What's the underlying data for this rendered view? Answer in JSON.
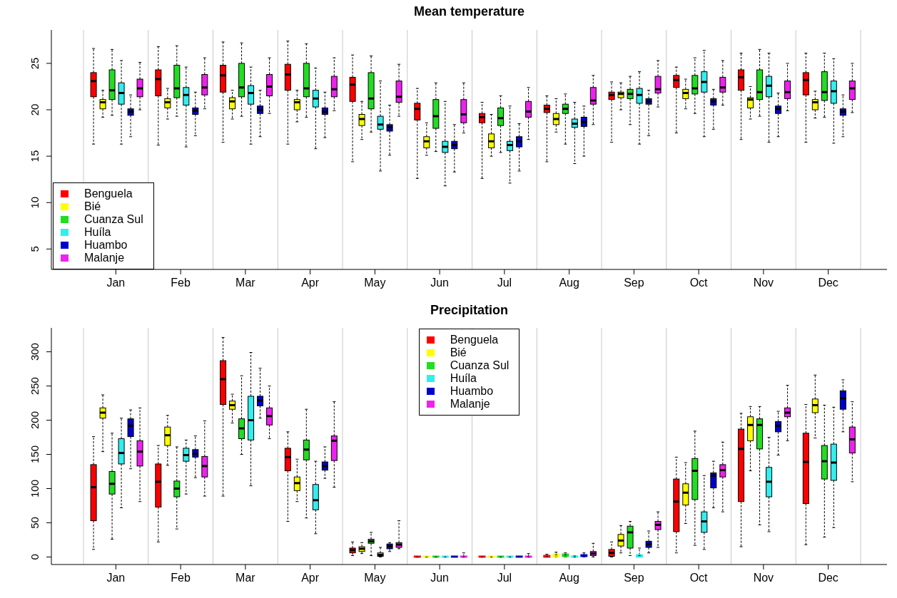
{
  "chart_data": [
    {
      "type": "box",
      "title": "Mean temperature",
      "categories": [
        "Jan",
        "Feb",
        "Mar",
        "Apr",
        "May",
        "Jun",
        "Jul",
        "Aug",
        "Sep",
        "Oct",
        "Nov",
        "Dec"
      ],
      "ylim": [
        2.8,
        28.6
      ],
      "yticks": [
        5,
        10,
        15,
        20,
        25
      ],
      "grid": "x",
      "legend": "bottom left",
      "series": [
        {
          "name": "Benguela",
          "color": "#ff0000",
          "boxes": [
            {
              "low": 16.3,
              "q1": 21.4,
              "median": 23.1,
              "q3": 24.0,
              "high": 26.6
            },
            {
              "low": 16.2,
              "q1": 21.5,
              "median": 23.3,
              "q3": 24.3,
              "high": 26.8
            },
            {
              "low": 16.5,
              "q1": 21.9,
              "median": 23.7,
              "q3": 24.8,
              "high": 27.3
            },
            {
              "low": 16.3,
              "q1": 22.1,
              "median": 23.8,
              "q3": 24.9,
              "high": 27.4
            },
            {
              "low": 14.4,
              "q1": 20.9,
              "median": 22.7,
              "q3": 23.5,
              "high": 25.9
            },
            {
              "low": 12.6,
              "q1": 18.9,
              "median": 20.1,
              "q3": 20.7,
              "high": 22.3
            },
            {
              "low": 12.6,
              "q1": 18.6,
              "median": 19.2,
              "q3": 19.6,
              "high": 20.8
            },
            {
              "low": 14.4,
              "q1": 19.7,
              "median": 20.1,
              "q3": 20.5,
              "high": 21.5
            },
            {
              "low": 16.5,
              "q1": 21.1,
              "median": 21.6,
              "q3": 21.9,
              "high": 23.0
            },
            {
              "low": 17.5,
              "q1": 22.4,
              "median": 23.2,
              "q3": 23.7,
              "high": 24.6
            },
            {
              "low": 16.8,
              "q1": 22.1,
              "median": 23.5,
              "q3": 24.3,
              "high": 26.1
            },
            {
              "low": 16.5,
              "q1": 21.6,
              "median": 23.2,
              "q3": 24.0,
              "high": 26.1
            }
          ]
        },
        {
          "name": "Bié",
          "color": "#ffff00",
          "boxes": [
            {
              "low": 19.2,
              "q1": 20.1,
              "median": 20.8,
              "q3": 21.1,
              "high": 22.1
            },
            {
              "low": 19.0,
              "q1": 20.2,
              "median": 20.8,
              "q3": 21.2,
              "high": 22.3
            },
            {
              "low": 19.0,
              "q1": 20.1,
              "median": 20.9,
              "q3": 21.3,
              "high": 22.1
            },
            {
              "low": 18.7,
              "q1": 20.0,
              "median": 20.8,
              "q3": 21.1,
              "high": 22.1
            },
            {
              "low": 16.8,
              "q1": 18.3,
              "median": 19.0,
              "q3": 19.5,
              "high": 20.9
            },
            {
              "low": 15.1,
              "q1": 15.9,
              "median": 16.6,
              "q3": 17.1,
              "high": 18.6
            },
            {
              "low": 15.0,
              "q1": 15.9,
              "median": 16.6,
              "q3": 17.4,
              "high": 19.5
            },
            {
              "low": 17.6,
              "q1": 18.4,
              "median": 19.0,
              "q3": 19.6,
              "high": 21.2
            },
            {
              "low": 20.0,
              "q1": 21.3,
              "median": 21.7,
              "q3": 21.9,
              "high": 22.9
            },
            {
              "low": 20.1,
              "q1": 21.2,
              "median": 21.8,
              "q3": 22.2,
              "high": 23.3
            },
            {
              "low": 19.0,
              "q1": 20.2,
              "median": 21.1,
              "q3": 21.3,
              "high": 22.5
            },
            {
              "low": 19.1,
              "q1": 20.0,
              "median": 20.8,
              "q3": 21.1,
              "high": 22.0
            }
          ]
        },
        {
          "name": "Cuanza Sul",
          "color": "#22dd22",
          "boxes": [
            {
              "low": 19.4,
              "q1": 21.1,
              "median": 22.1,
              "q3": 24.3,
              "high": 26.5
            },
            {
              "low": 19.3,
              "q1": 21.3,
              "median": 22.3,
              "q3": 24.8,
              "high": 26.9
            },
            {
              "low": 19.3,
              "q1": 21.4,
              "median": 22.4,
              "q3": 25.0,
              "high": 27.2
            },
            {
              "low": 19.2,
              "q1": 21.4,
              "median": 22.3,
              "q3": 25.0,
              "high": 27.1
            },
            {
              "low": 17.6,
              "q1": 20.1,
              "median": 21.2,
              "q3": 24.0,
              "high": 25.8
            },
            {
              "low": 15.5,
              "q1": 18.0,
              "median": 19.3,
              "q3": 21.1,
              "high": 22.9
            },
            {
              "low": 15.4,
              "q1": 18.3,
              "median": 19.1,
              "q3": 20.2,
              "high": 21.5
            },
            {
              "low": 16.3,
              "q1": 19.6,
              "median": 20.1,
              "q3": 20.6,
              "high": 21.7
            },
            {
              "low": 18.4,
              "q1": 21.2,
              "median": 21.7,
              "q3": 22.2,
              "high": 23.6
            },
            {
              "low": 19.6,
              "q1": 21.7,
              "median": 22.3,
              "q3": 23.7,
              "high": 25.6
            },
            {
              "low": 19.3,
              "q1": 21.1,
              "median": 21.9,
              "q3": 24.3,
              "high": 26.5
            },
            {
              "low": 19.2,
              "q1": 21.0,
              "median": 21.9,
              "q3": 24.1,
              "high": 26.1
            }
          ]
        },
        {
          "name": "Huíla",
          "color": "#33eeee",
          "boxes": [
            {
              "low": 16.3,
              "q1": 20.6,
              "median": 21.8,
              "q3": 22.9,
              "high": 25.3
            },
            {
              "low": 16.0,
              "q1": 20.5,
              "median": 21.6,
              "q3": 22.4,
              "high": 24.6
            },
            {
              "low": 16.3,
              "q1": 20.6,
              "median": 21.8,
              "q3": 22.6,
              "high": 24.6
            },
            {
              "low": 15.8,
              "q1": 20.3,
              "median": 21.2,
              "q3": 22.1,
              "high": 24.5
            },
            {
              "low": 13.4,
              "q1": 17.9,
              "median": 18.4,
              "q3": 19.3,
              "high": 23.1
            },
            {
              "low": 11.8,
              "q1": 15.4,
              "median": 16.0,
              "q3": 16.6,
              "high": 20.9
            },
            {
              "low": 12.1,
              "q1": 15.6,
              "median": 16.2,
              "q3": 16.6,
              "high": 20.4
            },
            {
              "low": 14.2,
              "q1": 18.1,
              "median": 18.5,
              "q3": 19.0,
              "high": 20.8
            },
            {
              "low": 16.3,
              "q1": 20.7,
              "median": 21.6,
              "q3": 22.3,
              "high": 24.1
            },
            {
              "low": 17.1,
              "q1": 21.9,
              "median": 23.0,
              "q3": 24.1,
              "high": 26.4
            },
            {
              "low": 16.5,
              "q1": 21.4,
              "median": 22.6,
              "q3": 23.6,
              "high": 26.1
            },
            {
              "low": 16.4,
              "q1": 20.7,
              "median": 22.0,
              "q3": 23.1,
              "high": 25.5
            }
          ]
        },
        {
          "name": "Huambo",
          "color": "#0000cc",
          "boxes": [
            {
              "low": 17.1,
              "q1": 19.4,
              "median": 19.8,
              "q3": 20.1,
              "high": 21.6
            },
            {
              "low": 17.2,
              "q1": 19.5,
              "median": 19.9,
              "q3": 20.2,
              "high": 21.9
            },
            {
              "low": 17.1,
              "q1": 19.6,
              "median": 20.0,
              "q3": 20.4,
              "high": 22.1
            },
            {
              "low": 17.0,
              "q1": 19.5,
              "median": 19.8,
              "q3": 20.2,
              "high": 21.9
            },
            {
              "low": 15.1,
              "q1": 17.7,
              "median": 18.1,
              "q3": 18.4,
              "high": 20.5
            },
            {
              "low": 13.3,
              "q1": 15.8,
              "median": 16.2,
              "q3": 16.6,
              "high": 18.4
            },
            {
              "low": 13.4,
              "q1": 16.0,
              "median": 16.6,
              "q3": 17.1,
              "high": 18.5
            },
            {
              "low": 15.0,
              "q1": 18.2,
              "median": 18.7,
              "q3": 19.2,
              "high": 20.4
            },
            {
              "low": 17.2,
              "q1": 20.6,
              "median": 20.9,
              "q3": 21.2,
              "high": 22.1
            },
            {
              "low": 17.9,
              "q1": 20.5,
              "median": 20.9,
              "q3": 21.2,
              "high": 22.2
            },
            {
              "low": 17.1,
              "q1": 19.6,
              "median": 20.1,
              "q3": 20.4,
              "high": 21.8
            },
            {
              "low": 17.1,
              "q1": 19.4,
              "median": 19.8,
              "q3": 20.1,
              "high": 21.6
            }
          ]
        },
        {
          "name": "Malanje",
          "color": "#ee22ee",
          "boxes": [
            {
              "low": 20.0,
              "q1": 21.4,
              "median": 22.3,
              "q3": 23.3,
              "high": 25.1
            },
            {
              "low": 20.1,
              "q1": 21.6,
              "median": 22.4,
              "q3": 23.8,
              "high": 25.6
            },
            {
              "low": 19.6,
              "q1": 21.5,
              "median": 22.5,
              "q3": 23.8,
              "high": 25.6
            },
            {
              "low": 19.9,
              "q1": 21.4,
              "median": 22.2,
              "q3": 23.6,
              "high": 25.6
            },
            {
              "low": 19.3,
              "q1": 20.8,
              "median": 21.4,
              "q3": 23.1,
              "high": 24.9
            },
            {
              "low": 17.5,
              "q1": 18.6,
              "median": 19.5,
              "q3": 21.1,
              "high": 22.9
            },
            {
              "low": 16.8,
              "q1": 19.2,
              "median": 19.8,
              "q3": 20.9,
              "high": 22.4
            },
            {
              "low": 18.4,
              "q1": 20.6,
              "median": 21.0,
              "q3": 22.4,
              "high": 23.7
            },
            {
              "low": 20.3,
              "q1": 21.8,
              "median": 22.2,
              "q3": 23.6,
              "high": 25.3
            },
            {
              "low": 20.5,
              "q1": 21.9,
              "median": 22.4,
              "q3": 23.5,
              "high": 25.3
            },
            {
              "low": 19.9,
              "q1": 21.2,
              "median": 21.9,
              "q3": 23.1,
              "high": 25.0
            },
            {
              "low": 19.7,
              "q1": 21.1,
              "median": 22.3,
              "q3": 23.1,
              "high": 25.0
            }
          ]
        }
      ]
    },
    {
      "type": "box",
      "title": "Precipitation",
      "categories": [
        "Jan",
        "Feb",
        "Mar",
        "Apr",
        "May",
        "Jun",
        "Jul",
        "Aug",
        "Sep",
        "Oct",
        "Nov",
        "Dec"
      ],
      "ylim": [
        -11,
        335
      ],
      "yticks": [
        0,
        50,
        100,
        150,
        200,
        250,
        300
      ],
      "grid": "x",
      "legend": "top",
      "series": [
        {
          "name": "Benguela",
          "color": "#ff0000",
          "boxes": [
            {
              "low": 11,
              "q1": 53,
              "median": 102,
              "q3": 135,
              "high": 176
            },
            {
              "low": 22,
              "q1": 73,
              "median": 110,
              "q3": 136,
              "high": 163
            },
            {
              "low": 89,
              "q1": 223,
              "median": 260,
              "q3": 287,
              "high": 321
            },
            {
              "low": 52,
              "q1": 126,
              "median": 146,
              "q3": 159,
              "high": 183
            },
            {
              "low": 2,
              "q1": 6,
              "median": 10,
              "q3": 13,
              "high": 22
            },
            {
              "low": 0,
              "q1": 0,
              "median": 0,
              "q3": 1,
              "high": 1
            },
            {
              "low": 0,
              "q1": 0,
              "median": 0,
              "q3": 1,
              "high": 1
            },
            {
              "low": 0,
              "q1": 0,
              "median": 1,
              "q3": 2,
              "high": 4
            },
            {
              "low": 0,
              "q1": 1,
              "median": 6,
              "q3": 11,
              "high": 22
            },
            {
              "low": 6,
              "q1": 37,
              "median": 81,
              "q3": 114,
              "high": 146
            },
            {
              "low": 15,
              "q1": 81,
              "median": 158,
              "q3": 187,
              "high": 210
            },
            {
              "low": 18,
              "q1": 78,
              "median": 139,
              "q3": 181,
              "high": 223
            }
          ]
        },
        {
          "name": "Bié",
          "color": "#ffff00",
          "boxes": [
            {
              "low": 154,
              "q1": 203,
              "median": 211,
              "q3": 218,
              "high": 237
            },
            {
              "low": 134,
              "q1": 163,
              "median": 178,
              "q3": 190,
              "high": 207
            },
            {
              "low": 196,
              "q1": 216,
              "median": 222,
              "q3": 228,
              "high": 238
            },
            {
              "low": 81,
              "q1": 97,
              "median": 108,
              "q3": 117,
              "high": 143
            },
            {
              "low": 5,
              "q1": 8,
              "median": 12,
              "q3": 15,
              "high": 21
            },
            {
              "low": 0,
              "q1": 0,
              "median": 0,
              "q3": 1,
              "high": 1
            },
            {
              "low": 0,
              "q1": 0,
              "median": 0,
              "q3": 1,
              "high": 1
            },
            {
              "low": 0,
              "q1": 1,
              "median": 3,
              "q3": 4,
              "high": 7
            },
            {
              "low": 6,
              "q1": 16,
              "median": 24,
              "q3": 33,
              "high": 46
            },
            {
              "low": 49,
              "q1": 76,
              "median": 94,
              "q3": 107,
              "high": 138
            },
            {
              "low": 126,
              "q1": 170,
              "median": 193,
              "q3": 205,
              "high": 220
            },
            {
              "low": 174,
              "q1": 211,
              "median": 222,
              "q3": 231,
              "high": 266
            }
          ]
        },
        {
          "name": "Cuanza Sul",
          "color": "#22dd22",
          "boxes": [
            {
              "low": 26,
              "q1": 92,
              "median": 107,
              "q3": 125,
              "high": 181
            },
            {
              "low": 41,
              "q1": 88,
              "median": 100,
              "q3": 111,
              "high": 161
            },
            {
              "low": 150,
              "q1": 173,
              "median": 188,
              "q3": 202,
              "high": 265
            },
            {
              "low": 57,
              "q1": 142,
              "median": 157,
              "q3": 171,
              "high": 216
            },
            {
              "low": 2,
              "q1": 20,
              "median": 23,
              "q3": 26,
              "high": 36
            },
            {
              "low": 0,
              "q1": 0,
              "median": 0,
              "q3": 1,
              "high": 1
            },
            {
              "low": 0,
              "q1": 0,
              "median": 0,
              "q3": 1,
              "high": 1
            },
            {
              "low": 0,
              "q1": 1,
              "median": 3,
              "q3": 4,
              "high": 6
            },
            {
              "low": 2,
              "q1": 13,
              "median": 36,
              "q3": 45,
              "high": 52
            },
            {
              "low": 17,
              "q1": 84,
              "median": 126,
              "q3": 144,
              "high": 184
            },
            {
              "low": 47,
              "q1": 158,
              "median": 193,
              "q3": 202,
              "high": 220
            },
            {
              "low": 29,
              "q1": 114,
              "median": 140,
              "q3": 163,
              "high": 222
            }
          ]
        },
        {
          "name": "Huíla",
          "color": "#33eeee",
          "boxes": [
            {
              "low": 72,
              "q1": 136,
              "median": 152,
              "q3": 173,
              "high": 203
            },
            {
              "low": 92,
              "q1": 140,
              "median": 149,
              "q3": 159,
              "high": 171
            },
            {
              "low": 104,
              "q1": 171,
              "median": 200,
              "q3": 235,
              "high": 299
            },
            {
              "low": 34,
              "q1": 69,
              "median": 83,
              "q3": 106,
              "high": 140
            },
            {
              "low": 0,
              "q1": 1,
              "median": 3,
              "q3": 6,
              "high": 14
            },
            {
              "low": 0,
              "q1": 0,
              "median": 0,
              "q3": 1,
              "high": 1
            },
            {
              "low": 0,
              "q1": 0,
              "median": 0,
              "q3": 1,
              "high": 1
            },
            {
              "low": 0,
              "q1": 0,
              "median": 0,
              "q3": 1,
              "high": 2
            },
            {
              "low": 0,
              "q1": 0,
              "median": 2,
              "q3": 3,
              "high": 13
            },
            {
              "low": 11,
              "q1": 36,
              "median": 52,
              "q3": 66,
              "high": 119
            },
            {
              "low": 37,
              "q1": 88,
              "median": 110,
              "q3": 131,
              "high": 175
            },
            {
              "low": 43,
              "q1": 112,
              "median": 138,
              "q3": 165,
              "high": 219
            }
          ]
        },
        {
          "name": "Huambo",
          "color": "#0000cc",
          "boxes": [
            {
              "low": 129,
              "q1": 176,
              "median": 192,
              "q3": 202,
              "high": 215
            },
            {
              "low": 116,
              "q1": 146,
              "median": 151,
              "q3": 157,
              "high": 177
            },
            {
              "low": 203,
              "q1": 221,
              "median": 229,
              "q3": 235,
              "high": 276
            },
            {
              "low": 115,
              "q1": 127,
              "median": 133,
              "q3": 139,
              "high": 161
            },
            {
              "low": 8,
              "q1": 12,
              "median": 16,
              "q3": 19,
              "high": 21
            },
            {
              "low": 0,
              "q1": 0,
              "median": 0,
              "q3": 1,
              "high": 1
            },
            {
              "low": 0,
              "q1": 0,
              "median": 0,
              "q3": 1,
              "high": 1
            },
            {
              "low": 0,
              "q1": 1,
              "median": 2,
              "q3": 3,
              "high": 6
            },
            {
              "low": 6,
              "q1": 14,
              "median": 19,
              "q3": 23,
              "high": 38
            },
            {
              "low": 72,
              "q1": 101,
              "median": 119,
              "q3": 123,
              "high": 140
            },
            {
              "low": 149,
              "q1": 183,
              "median": 192,
              "q3": 198,
              "high": 213
            },
            {
              "low": 183,
              "q1": 216,
              "median": 232,
              "q3": 243,
              "high": 259
            }
          ]
        },
        {
          "name": "Malanje",
          "color": "#ee22ee",
          "boxes": [
            {
              "low": 81,
              "q1": 133,
              "median": 154,
              "q3": 170,
              "high": 218
            },
            {
              "low": 89,
              "q1": 117,
              "median": 133,
              "q3": 147,
              "high": 199
            },
            {
              "low": 173,
              "q1": 193,
              "median": 206,
              "q3": 218,
              "high": 250
            },
            {
              "low": 102,
              "q1": 141,
              "median": 170,
              "q3": 177,
              "high": 227
            },
            {
              "low": 12,
              "q1": 14,
              "median": 18,
              "q3": 21,
              "high": 53
            },
            {
              "low": 0,
              "q1": 0,
              "median": 0,
              "q3": 1,
              "high": 6
            },
            {
              "low": 0,
              "q1": 0,
              "median": 0,
              "q3": 1,
              "high": 5
            },
            {
              "low": 0,
              "q1": 2,
              "median": 5,
              "q3": 8,
              "high": 20
            },
            {
              "low": 14,
              "q1": 40,
              "median": 47,
              "q3": 52,
              "high": 66
            },
            {
              "low": 66,
              "q1": 117,
              "median": 127,
              "q3": 135,
              "high": 168
            },
            {
              "low": 170,
              "q1": 205,
              "median": 211,
              "q3": 218,
              "high": 251
            },
            {
              "low": 110,
              "q1": 152,
              "median": 172,
              "q3": 190,
              "high": 227
            }
          ]
        }
      ]
    }
  ]
}
